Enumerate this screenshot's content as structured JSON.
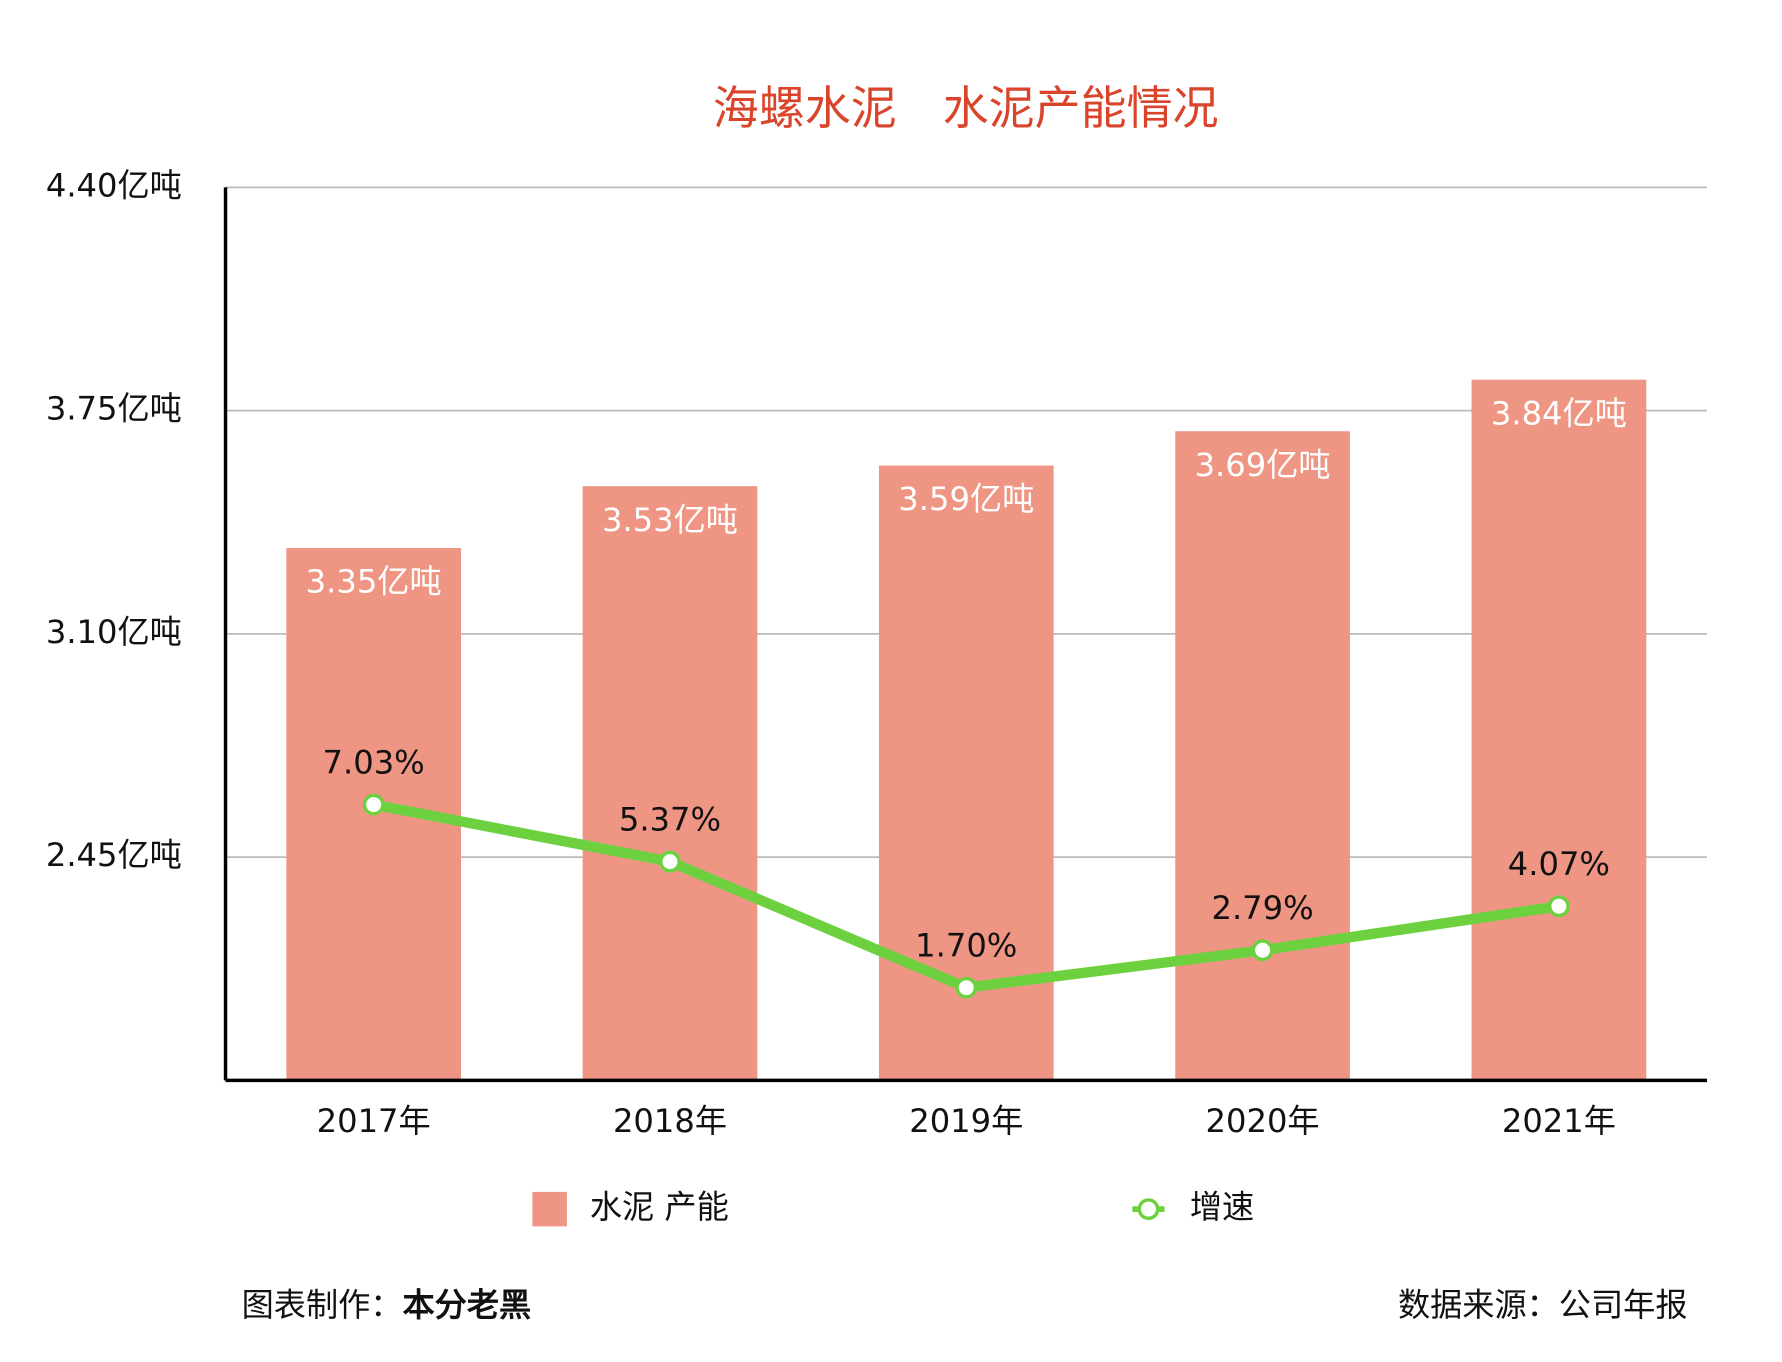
{
  "chart_data": {
    "type": "bar",
    "title": "海螺水泥　水泥产能情况",
    "categories": [
      "2017年",
      "2018年",
      "2019年",
      "2020年",
      "2021年"
    ],
    "series": [
      {
        "name": "水泥 产能",
        "type": "bar",
        "color": "#ef9584",
        "values": [
          3.35,
          3.53,
          3.59,
          3.69,
          3.84
        ],
        "value_labels": [
          "3.35亿吨",
          "3.53亿吨",
          "3.59亿吨",
          "3.69亿吨",
          "3.84亿吨"
        ]
      },
      {
        "name": "增速",
        "type": "line",
        "axis": "y2",
        "color": "#6dd13f",
        "values": [
          7.03,
          5.37,
          1.7,
          2.79,
          4.07
        ],
        "value_labels": [
          "7.03%",
          "5.37%",
          "1.70%",
          "2.79%",
          "4.07%"
        ]
      }
    ],
    "ylim": [
      1.8,
      4.4
    ],
    "yticks": [
      {
        "value": 2.45,
        "label": "2.45亿吨"
      },
      {
        "value": 3.1,
        "label": "3.10亿吨"
      },
      {
        "value": 3.75,
        "label": "3.75亿吨"
      },
      {
        "value": 4.4,
        "label": "4.40亿吨"
      }
    ],
    "y2lim": [
      -1,
      25
    ],
    "grid": true,
    "legend": "bottom",
    "credit_label": "图表制作：",
    "credit": "本分老黑",
    "source": "数据来源：公司年报"
  }
}
